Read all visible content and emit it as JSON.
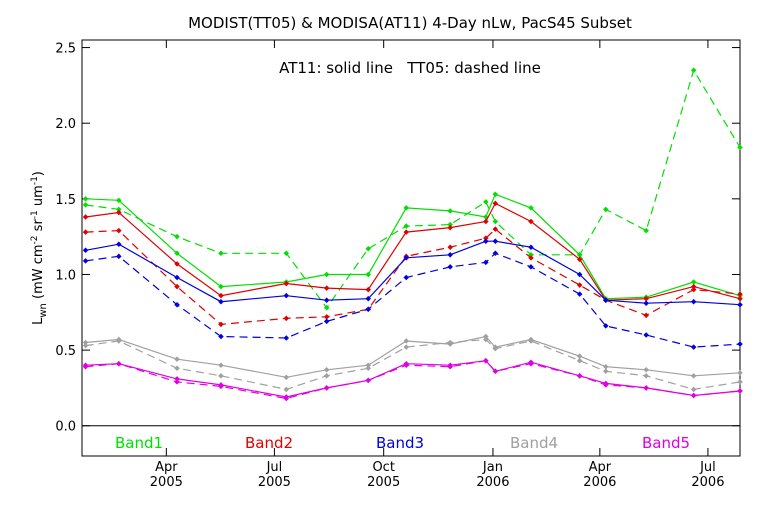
{
  "chart_data": {
    "type": "line",
    "title": "MODIST(TT05) & MODISA(AT11) 4-Day nLw, PacS45 Subset",
    "ylabel": "L_wn (mW cm^-2 sr^-1 um^-1)",
    "ylabel_main": "L",
    "ylabel_sub": "wn",
    "ylabel_units_prefix": "(mW cm",
    "ylabel_units_exp1": "-2",
    "ylabel_units_mid": " sr",
    "ylabel_units_exp2": "-1",
    "ylabel_units_mid2": " um",
    "ylabel_units_exp3": "-1",
    "ylabel_units_suffix": ")",
    "annotation": "AT11: solid line   TT05: dashed line",
    "ylim": [
      -0.2,
      2.55
    ],
    "xlim": [
      "2005-01-20",
      "2006-07-28"
    ],
    "grid": false,
    "y_ticks": [
      "0.0",
      "0.5",
      "1.0",
      "1.5",
      "2.0",
      "2.5"
    ],
    "y_tick_values": [
      0.0,
      0.5,
      1.0,
      1.5,
      2.0,
      2.5
    ],
    "x_ticks": [
      {
        "date": "2005-04-01",
        "month": "Apr",
        "year": "2005"
      },
      {
        "date": "2005-07-01",
        "month": "Jul",
        "year": "2005"
      },
      {
        "date": "2005-10-01",
        "month": "Oct",
        "year": "2005"
      },
      {
        "date": "2006-01-01",
        "month": "Jan",
        "year": "2006"
      },
      {
        "date": "2006-04-01",
        "month": "Apr",
        "year": "2006"
      },
      {
        "date": "2006-07-01",
        "month": "Jul",
        "year": "2006"
      }
    ],
    "x": [
      "2005-01-23",
      "2005-02-20",
      "2005-04-10",
      "2005-05-17",
      "2005-07-11",
      "2005-08-14",
      "2005-09-18",
      "2005-10-20",
      "2005-11-26",
      "2005-12-26",
      "2006-01-03",
      "2006-02-02",
      "2006-03-15",
      "2006-04-06",
      "2006-05-10",
      "2006-06-19",
      "2006-07-28"
    ],
    "series": [
      {
        "name": "Band1",
        "color": "#00e000",
        "style": "solid",
        "values": [
          1.5,
          1.49,
          1.14,
          0.92,
          0.95,
          1.0,
          1.0,
          1.44,
          1.42,
          1.38,
          1.53,
          1.44,
          1.13,
          0.84,
          0.85,
          0.95,
          0.86
        ]
      },
      {
        "name": "Band1",
        "color": "#00e000",
        "style": "dashed",
        "values": [
          1.46,
          1.43,
          1.25,
          1.14,
          1.14,
          0.78,
          1.17,
          1.32,
          1.33,
          1.48,
          1.35,
          1.13,
          1.13,
          1.43,
          1.29,
          2.35,
          1.84
        ]
      },
      {
        "name": "Band2",
        "color": "#e00000",
        "style": "solid",
        "values": [
          1.38,
          1.41,
          1.07,
          0.86,
          0.94,
          0.91,
          0.9,
          1.28,
          1.31,
          1.35,
          1.47,
          1.35,
          1.1,
          0.83,
          0.84,
          0.92,
          0.84
        ]
      },
      {
        "name": "Band2",
        "color": "#e00000",
        "style": "dashed",
        "values": [
          1.28,
          1.29,
          0.92,
          0.67,
          0.71,
          0.72,
          0.77,
          1.12,
          1.18,
          1.24,
          1.3,
          1.11,
          0.93,
          0.83,
          0.73,
          0.9,
          0.87
        ]
      },
      {
        "name": "Band3",
        "color": "#0000e0",
        "style": "solid",
        "values": [
          1.16,
          1.2,
          0.98,
          0.82,
          0.86,
          0.83,
          0.84,
          1.11,
          1.13,
          1.22,
          1.22,
          1.18,
          1.0,
          0.83,
          0.81,
          0.82,
          0.8
        ]
      },
      {
        "name": "Band3",
        "color": "#0000e0",
        "style": "dashed",
        "values": [
          1.09,
          1.12,
          0.8,
          0.59,
          0.58,
          0.69,
          0.77,
          0.98,
          1.05,
          1.08,
          1.14,
          1.05,
          0.87,
          0.66,
          0.6,
          0.52,
          0.54
        ]
      },
      {
        "name": "Band4",
        "color": "#a0a0a0",
        "style": "solid",
        "values": [
          0.55,
          0.57,
          0.44,
          0.4,
          0.32,
          0.37,
          0.4,
          0.56,
          0.54,
          0.59,
          0.52,
          0.57,
          0.46,
          0.39,
          0.37,
          0.33,
          0.35
        ]
      },
      {
        "name": "Band4",
        "color": "#a0a0a0",
        "style": "dashed",
        "values": [
          0.53,
          0.56,
          0.38,
          0.33,
          0.24,
          0.33,
          0.38,
          0.52,
          0.55,
          0.57,
          0.51,
          0.56,
          0.43,
          0.36,
          0.33,
          0.24,
          0.29
        ]
      },
      {
        "name": "Band5",
        "color": "#e000e0",
        "style": "solid",
        "values": [
          0.4,
          0.41,
          0.31,
          0.27,
          0.19,
          0.25,
          0.3,
          0.41,
          0.4,
          0.43,
          0.36,
          0.42,
          0.33,
          0.28,
          0.25,
          0.2,
          0.23
        ]
      },
      {
        "name": "Band5",
        "color": "#e000e0",
        "style": "dashed",
        "values": [
          0.39,
          0.41,
          0.29,
          0.26,
          0.18,
          0.25,
          0.3,
          0.4,
          0.39,
          0.43,
          0.36,
          0.41,
          0.33,
          0.27,
          0.25,
          0.2,
          0.23
        ]
      }
    ],
    "legend": [
      {
        "label": "Band1",
        "color": "#00e000"
      },
      {
        "label": "Band2",
        "color": "#e00000"
      },
      {
        "label": "Band3",
        "color": "#0000e0"
      },
      {
        "label": "Band4",
        "color": "#a0a0a0"
      },
      {
        "label": "Band5",
        "color": "#e000e0"
      }
    ],
    "legend_placement": "bottom inside plot"
  }
}
